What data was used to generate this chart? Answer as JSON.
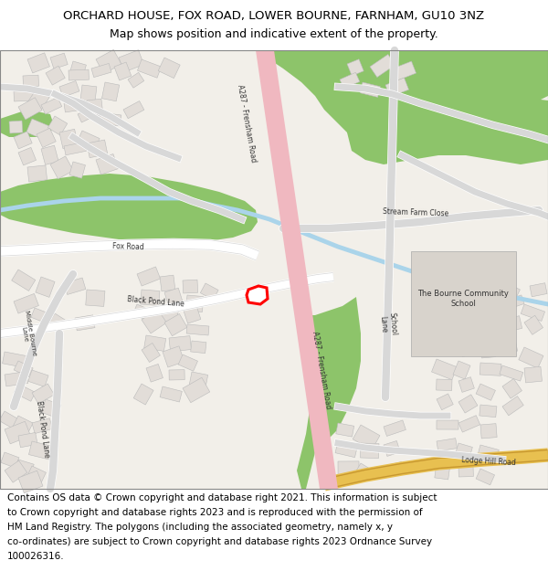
{
  "title_line1": "ORCHARD HOUSE, FOX ROAD, LOWER BOURNE, FARNHAM, GU10 3NZ",
  "title_line2": "Map shows position and indicative extent of the property.",
  "footer_lines": [
    "Contains OS data © Crown copyright and database right 2021. This information is subject",
    "to Crown copyright and database rights 2023 and is reproduced with the permission of",
    "HM Land Registry. The polygons (including the associated geometry, namely x, y",
    "co-ordinates) are subject to Crown copyright and database rights 2023 Ordnance Survey",
    "100026316."
  ],
  "map_bg": "#f2efe9",
  "road_main_color": "#f0b8c0",
  "road_secondary_color": "#ffffff",
  "green_color": "#8dc46a",
  "water_color": "#aad4ea",
  "building_color": "#e2ddd8",
  "plot_color": "#ff0000",
  "school_color": "#d8d3cc",
  "lodge_road_color": "#e8c050",
  "title_fontsize": 9.5,
  "subtitle_fontsize": 9.0,
  "footer_fontsize": 7.5,
  "label_fontsize": 5.5
}
